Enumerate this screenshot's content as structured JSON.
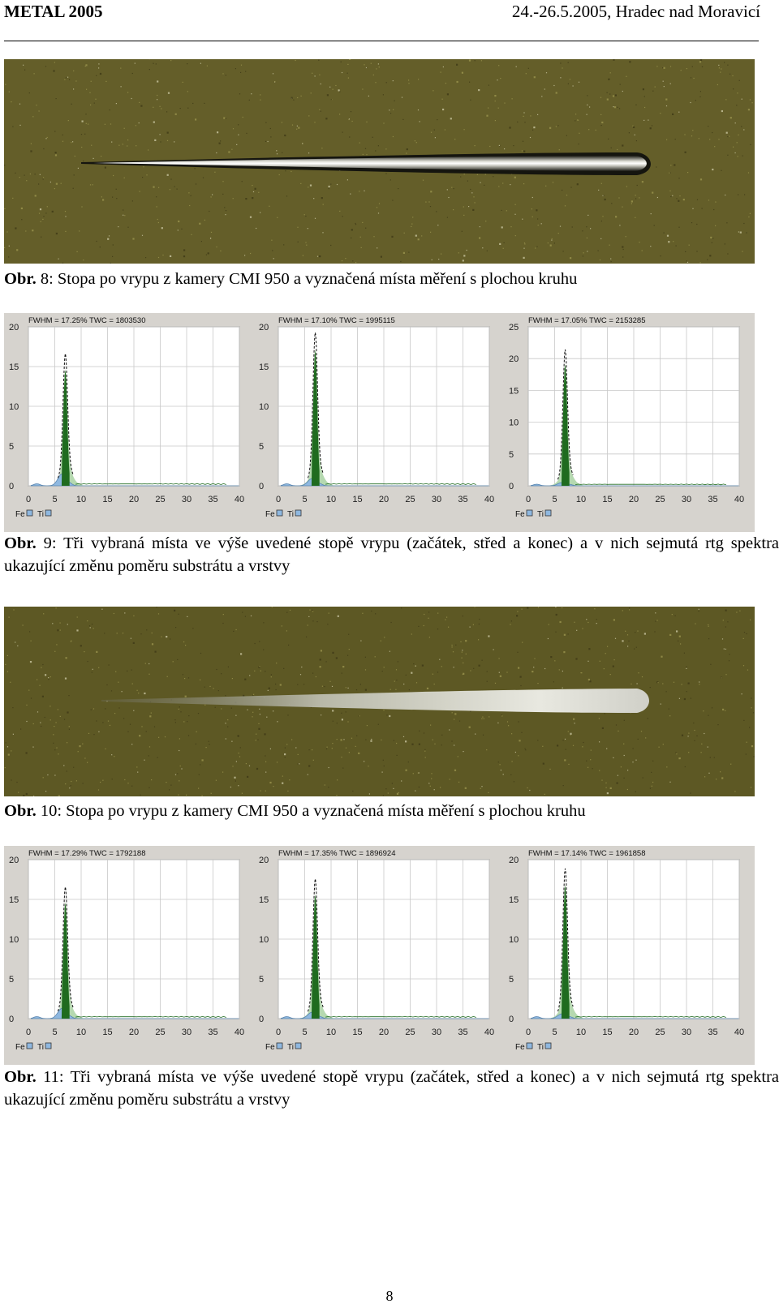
{
  "header": {
    "conference": "METAL 2005",
    "date_place": "24.-26.5.2005, Hradec nad Moravicí"
  },
  "figures": {
    "fig8": {
      "label": "Obr.",
      "number": "8",
      "text": ": Stopa po vrypu z kamery CMI 950 a vyznačená místa měření s plochou kruhu"
    },
    "fig9": {
      "label": "Obr.",
      "number": "9",
      "text": ": Tři vybraná místa ve výše uvedené stopě vrypu (začátek, střed a konec) a v nich sejmutá rtg spektra ukazující změnu poměru substrátu a vrstvy"
    },
    "fig10": {
      "label": "Obr.",
      "number": "10",
      "text": ": Stopa po vrypu z kamery CMI 950 a vyznačená místa měření s plochou kruhu"
    },
    "fig11": {
      "label": "Obr.",
      "number": "11",
      "text": ": Tři vybraná místa ve výše uvedené stopě vrypu (začátek, střed a konec) a v nich sejmutá rtg spektra ukazující změnu poměru substrátu a vrstvy"
    }
  },
  "legend": {
    "fe": "Fe",
    "ti": "Ti"
  },
  "colors": {
    "fe": "#8fb8e0",
    "ti_fill": "#b5d9b0",
    "ti_dark": "#1f6b1f",
    "panel_bg": "#d6d3ce",
    "grid": "#c8c8c8"
  },
  "chart_data": [
    {
      "type": "area",
      "group": "Obr. 9",
      "title": "FWHM = 17.25% TWC = 1803530",
      "xlim": [
        0,
        40
      ],
      "ylim": [
        0,
        20
      ],
      "xticks": [
        0,
        5,
        10,
        15,
        20,
        25,
        30,
        35,
        40
      ],
      "yticks": [
        0,
        5,
        10,
        15,
        20
      ],
      "fe_peak": {
        "x": 6.4,
        "y": 1.5
      },
      "ti_peak": {
        "x": 7.0,
        "y": 14.5
      }
    },
    {
      "type": "area",
      "group": "Obr. 9",
      "title": "FWHM = 17.10% TWC = 1995115",
      "xlim": [
        0,
        40
      ],
      "ylim": [
        0,
        20
      ],
      "xticks": [
        0,
        5,
        10,
        15,
        20,
        25,
        30,
        35,
        40
      ],
      "yticks": [
        0,
        5,
        10,
        15,
        20
      ],
      "fe_peak": {
        "x": 6.4,
        "y": 0.9
      },
      "ti_peak": {
        "x": 7.0,
        "y": 17.0
      }
    },
    {
      "type": "area",
      "group": "Obr. 9",
      "title": "FWHM = 17.05% TWC = 2153285",
      "xlim": [
        0,
        40
      ],
      "ylim": [
        0,
        25
      ],
      "xticks": [
        0,
        5,
        10,
        15,
        20,
        25,
        30,
        35,
        40
      ],
      "yticks": [
        0,
        5,
        10,
        15,
        20,
        25
      ],
      "fe_peak": {
        "x": 6.4,
        "y": 0.5
      },
      "ti_peak": {
        "x": 7.0,
        "y": 19.0
      }
    },
    {
      "type": "area",
      "group": "Obr. 11",
      "title": "FWHM = 17.29% TWC = 1792188",
      "xlim": [
        0,
        40
      ],
      "ylim": [
        0,
        20
      ],
      "xticks": [
        0,
        5,
        10,
        15,
        20,
        25,
        30,
        35,
        40
      ],
      "yticks": [
        0,
        5,
        10,
        15,
        20
      ],
      "fe_peak": {
        "x": 6.4,
        "y": 1.3
      },
      "ti_peak": {
        "x": 7.0,
        "y": 14.5
      }
    },
    {
      "type": "area",
      "group": "Obr. 11",
      "title": "FWHM = 17.35% TWC = 1896924",
      "xlim": [
        0,
        40
      ],
      "ylim": [
        0,
        20
      ],
      "xticks": [
        0,
        5,
        10,
        15,
        20,
        25,
        30,
        35,
        40
      ],
      "yticks": [
        0,
        5,
        10,
        15,
        20
      ],
      "fe_peak": {
        "x": 6.4,
        "y": 0.8
      },
      "ti_peak": {
        "x": 7.0,
        "y": 15.5
      }
    },
    {
      "type": "area",
      "group": "Obr. 11",
      "title": "FWHM = 17.14% TWC = 1961858",
      "xlim": [
        0,
        40
      ],
      "ylim": [
        0,
        20
      ],
      "xticks": [
        0,
        5,
        10,
        15,
        20,
        25,
        30,
        35,
        40
      ],
      "yticks": [
        0,
        5,
        10,
        15,
        20
      ],
      "fe_peak": {
        "x": 6.4,
        "y": 0.6
      },
      "ti_peak": {
        "x": 7.0,
        "y": 16.7
      }
    }
  ],
  "page_number": "8"
}
